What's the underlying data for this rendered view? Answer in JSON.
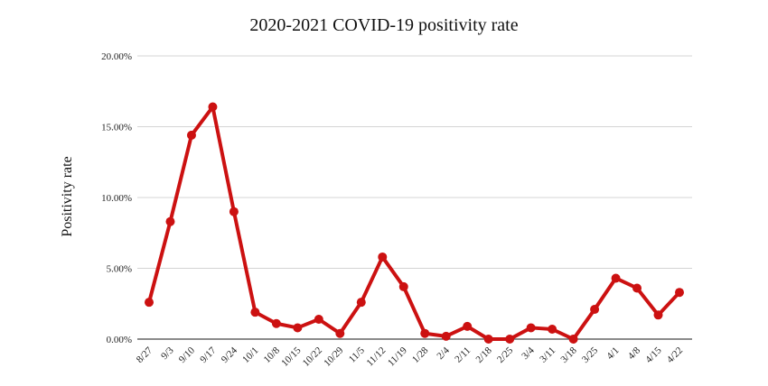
{
  "chart_data": {
    "type": "line",
    "title": "2020-2021 COVID-19 positivity rate",
    "xlabel": "",
    "ylabel": "Positivity rate",
    "ylim": [
      0,
      20
    ],
    "yticks": [
      0,
      5,
      10,
      15,
      20
    ],
    "ytick_labels": [
      "0.00%",
      "5.00%",
      "10.00%",
      "15.00%",
      "20.00%"
    ],
    "grid": true,
    "legend": "none",
    "categories": [
      "8/27",
      "9/3",
      "9/10",
      "9/17",
      "9/24",
      "10/1",
      "10/8",
      "10/15",
      "10/22",
      "10/29",
      "11/5",
      "11/12",
      "11/19",
      "1/28",
      "2/4",
      "2/11",
      "2/18",
      "2/25",
      "3/4",
      "3/11",
      "3/18",
      "3/25",
      "4/1",
      "4/8",
      "4/15",
      "4/22"
    ],
    "series": [
      {
        "color": "#cc1111",
        "values": [
          2.6,
          8.3,
          14.4,
          16.4,
          9.0,
          1.9,
          1.1,
          0.8,
          1.4,
          0.4,
          2.6,
          5.8,
          3.7,
          0.4,
          0.2,
          0.9,
          0.0,
          0.0,
          0.8,
          0.7,
          0.0,
          2.1,
          4.3,
          3.6,
          1.7,
          3.3
        ]
      }
    ]
  }
}
